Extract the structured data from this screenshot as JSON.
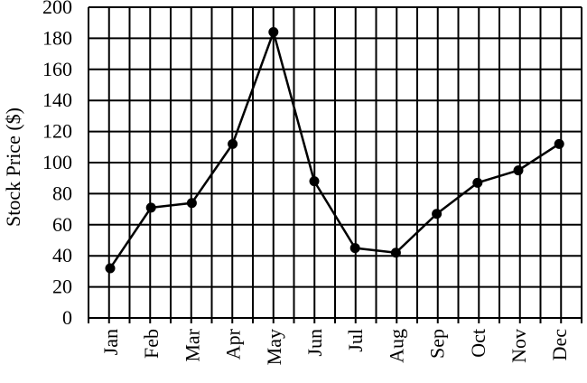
{
  "chart_data": {
    "type": "line",
    "title": "",
    "xlabel": "",
    "ylabel": "Stock Price ($)",
    "categories": [
      "Jan",
      "Feb",
      "Mar",
      "Apr",
      "May",
      "Jun",
      "Jul",
      "Aug",
      "Sep",
      "Oct",
      "Nov",
      "Dec"
    ],
    "series": [
      {
        "values": [
          32,
          71,
          74,
          112,
          184,
          88,
          45,
          42,
          67,
          87,
          95,
          112
        ]
      }
    ],
    "ylim": [
      0,
      200
    ],
    "yticks": [
      0,
      20,
      40,
      60,
      80,
      100,
      120,
      140,
      160,
      180,
      200
    ],
    "grid": true,
    "legend": "none",
    "colors": {
      "line": "#000000",
      "grid": "#000000",
      "background": "#ffffff"
    }
  }
}
